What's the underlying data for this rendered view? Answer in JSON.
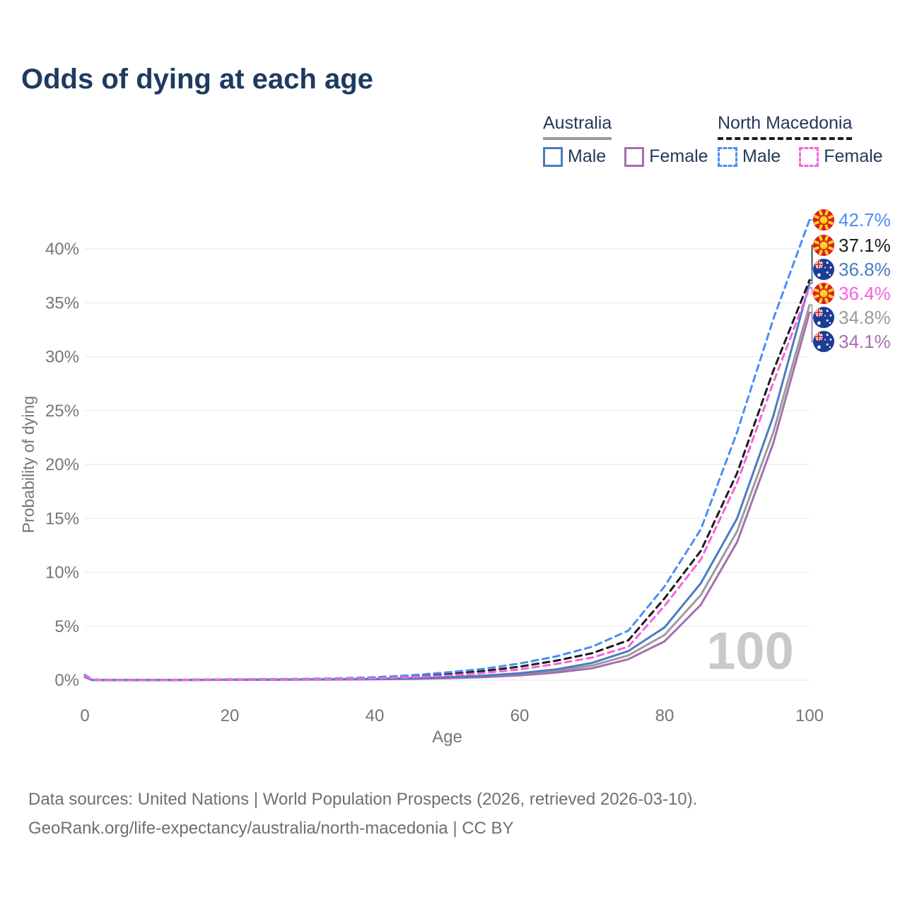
{
  "title": "Odds of dying at each age",
  "legend": {
    "groups": [
      {
        "country": "Australia",
        "line_style": "solid",
        "line_color": "#9b9b9b",
        "items": [
          {
            "label": "Male",
            "color": "#4a7cc2",
            "dash": false
          },
          {
            "label": "Female",
            "color": "#a56eb0",
            "dash": false
          }
        ]
      },
      {
        "country": "North Macedonia",
        "line_style": "dashed",
        "line_color": "#1c1c1c",
        "items": [
          {
            "label": "Male",
            "color": "#4c8df5",
            "dash": true
          },
          {
            "label": "Female",
            "color": "#f564da",
            "dash": true
          }
        ]
      }
    ]
  },
  "chart_data": {
    "type": "line",
    "title": "Odds of dying at each age",
    "xlabel": "Age",
    "ylabel": "Probability of dying",
    "xlim": [
      0,
      100
    ],
    "ylim": [
      0,
      43
    ],
    "x_ticks": [
      0,
      20,
      40,
      60,
      80,
      100
    ],
    "y_ticks": [
      0,
      5,
      10,
      15,
      20,
      25,
      30,
      35,
      40
    ],
    "y_tick_suffix": "%",
    "grid": "horizontal-only",
    "legend_position": "top-right",
    "watermark": "100",
    "ages": [
      0,
      1,
      5,
      10,
      15,
      20,
      25,
      30,
      35,
      40,
      45,
      50,
      55,
      60,
      65,
      70,
      75,
      80,
      85,
      90,
      95,
      100
    ],
    "series": [
      {
        "name": "Australia Both sexes",
        "country": "Australia",
        "group": "Both sexes",
        "flag": "au",
        "color": "#9b9b9b",
        "dash": false,
        "end_label": "34.8%",
        "values": [
          0.3,
          0.02,
          0.01,
          0.01,
          0.02,
          0.04,
          0.05,
          0.06,
          0.08,
          0.1,
          0.15,
          0.23,
          0.35,
          0.54,
          0.85,
          1.35,
          2.3,
          4.2,
          7.9,
          13.8,
          23.0,
          34.8
        ]
      },
      {
        "name": "Australia Female",
        "country": "Australia",
        "group": "Female",
        "flag": "au",
        "color": "#a56eb0",
        "dash": false,
        "end_label": "34.1%",
        "values": [
          0.28,
          0.015,
          0.008,
          0.008,
          0.015,
          0.03,
          0.035,
          0.045,
          0.06,
          0.08,
          0.12,
          0.18,
          0.28,
          0.44,
          0.7,
          1.1,
          1.95,
          3.6,
          7.0,
          12.8,
          22.0,
          34.1
        ]
      },
      {
        "name": "Australia Male",
        "country": "Australia",
        "group": "Male",
        "flag": "au",
        "color": "#4a7cc2",
        "dash": false,
        "end_label": "36.8%",
        "values": [
          0.35,
          0.02,
          0.01,
          0.01,
          0.03,
          0.05,
          0.06,
          0.07,
          0.09,
          0.12,
          0.18,
          0.27,
          0.42,
          0.65,
          1.0,
          1.6,
          2.7,
          4.9,
          9.0,
          15.0,
          24.5,
          36.8
        ]
      },
      {
        "name": "North Macedonia Both sexes",
        "country": "North Macedonia",
        "group": "Both sexes",
        "flag": "mk",
        "color": "#1c1c1c",
        "dash": true,
        "end_label": "37.1%",
        "values": [
          0.45,
          0.04,
          0.02,
          0.02,
          0.04,
          0.06,
          0.08,
          0.1,
          0.14,
          0.21,
          0.34,
          0.55,
          0.85,
          1.25,
          1.8,
          2.5,
          3.7,
          7.6,
          12.0,
          19.2,
          28.7,
          37.1
        ]
      },
      {
        "name": "North Macedonia Male",
        "country": "North Macedonia",
        "group": "Male",
        "flag": "mk",
        "color": "#4c8df5",
        "dash": true,
        "end_label": "42.7%",
        "values": [
          0.5,
          0.05,
          0.02,
          0.02,
          0.05,
          0.08,
          0.1,
          0.12,
          0.17,
          0.27,
          0.45,
          0.72,
          1.05,
          1.55,
          2.2,
          3.1,
          4.6,
          8.7,
          14.0,
          23.0,
          33.5,
          42.7
        ]
      },
      {
        "name": "North Macedonia Female",
        "country": "North Macedonia",
        "group": "Female",
        "flag": "mk",
        "color": "#f564da",
        "dash": true,
        "end_label": "36.4%",
        "values": [
          0.4,
          0.04,
          0.015,
          0.015,
          0.03,
          0.05,
          0.06,
          0.08,
          0.11,
          0.17,
          0.27,
          0.43,
          0.67,
          1.0,
          1.5,
          2.1,
          3.1,
          6.9,
          11.2,
          18.3,
          27.6,
          36.4
        ]
      }
    ]
  },
  "footer": {
    "line1": "Data sources: United Nations | World Population Prospects (2026, retrieved 2026-03-10).",
    "line2": "GeoRank.org/life-expectancy/australia/north-macedonia | CC BY"
  }
}
